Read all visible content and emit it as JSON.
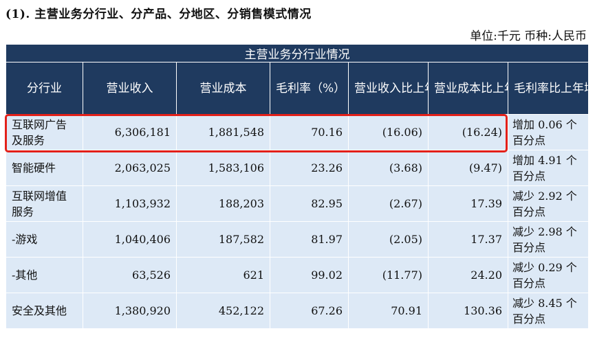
{
  "section_title": "(1). 主营业务分行业、分产品、分地区、分销售模式情况",
  "unit_label": "单位:千元   币种:人民币",
  "table": {
    "caption": "主营业务分行业情况",
    "headers": [
      "分行业",
      "营业收入",
      "营业成本",
      "毛利率（%）",
      "营业收入比上年增减（%）",
      "营业成本比上年增减（%）",
      "毛利率比上年增减（%）"
    ],
    "rows": [
      {
        "industry": "互联网广告及服务",
        "revenue": "6,306,181",
        "cost": "1,881,548",
        "margin": "70.16",
        "rev_change": "(16.06)",
        "cost_change": "(16.24)",
        "margin_change": "增加 0.06 个百分点"
      },
      {
        "industry": "智能硬件",
        "revenue": "2,063,025",
        "cost": "1,583,106",
        "margin": "23.26",
        "rev_change": "(3.68)",
        "cost_change": "(9.47)",
        "margin_change": "增加 4.91 个百分点"
      },
      {
        "industry": "互联网增值服务",
        "revenue": "1,103,932",
        "cost": "188,203",
        "margin": "82.95",
        "rev_change": "(2.67)",
        "cost_change": "17.39",
        "margin_change": "减少 2.92 个百分点"
      },
      {
        "industry": "-游戏",
        "revenue": "1,040,406",
        "cost": "187,582",
        "margin": "81.97",
        "rev_change": "(2.05)",
        "cost_change": "17.37",
        "margin_change": "减少 2.98 个百分点"
      },
      {
        "industry": "-其他",
        "revenue": "63,526",
        "cost": "621",
        "margin": "99.02",
        "rev_change": "(11.77)",
        "cost_change": "24.20",
        "margin_change": "减少 0.29 个百分点"
      },
      {
        "industry": "安全及其他",
        "revenue": "1,380,920",
        "cost": "452,122",
        "margin": "67.26",
        "rev_change": "70.91",
        "cost_change": "130.36",
        "margin_change": "减少 8.45 个百分点"
      }
    ]
  },
  "colors": {
    "header_bg": "#1f3a5f",
    "cell_bg": "#dde9f6",
    "highlight_border": "#e32019"
  }
}
